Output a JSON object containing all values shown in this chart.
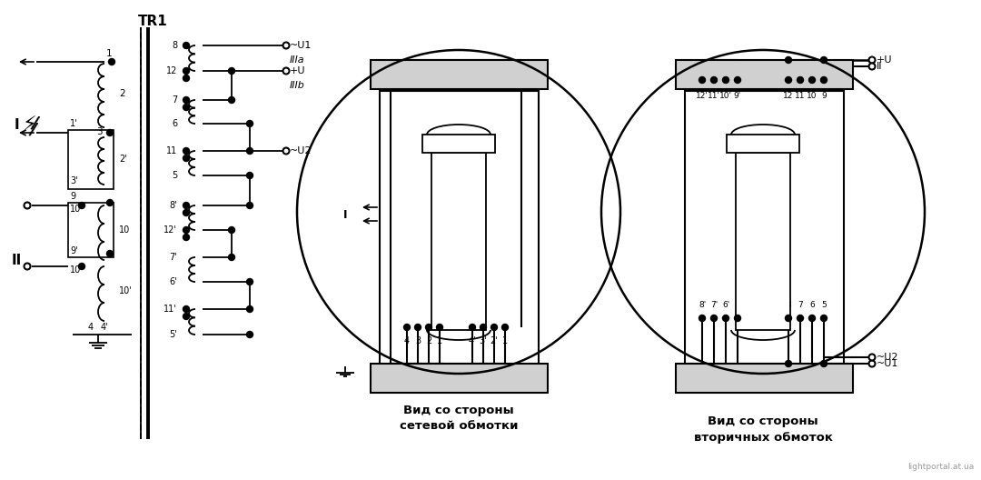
{
  "line_color": "#000000",
  "title_tr1": "TR1",
  "label_I_left": "I",
  "label_II_left": "II",
  "label_I_mid": "I",
  "label_view1": "Вид со стороны\nсетевой обмотки",
  "label_view2": "Вид со стороны\nвторичных обмоток",
  "watermark": "lightportal.at.ua",
  "labels_IIIa": "IIIа",
  "labels_IIIb": "IIIb",
  "label_U1_top": "~U1",
  "label_pU": "+U",
  "label_U2": "~U2",
  "label_pU_right": "+U",
  "label_II_right": "II",
  "label_U1_right": "~U1",
  "label_U2_right": "~U2"
}
